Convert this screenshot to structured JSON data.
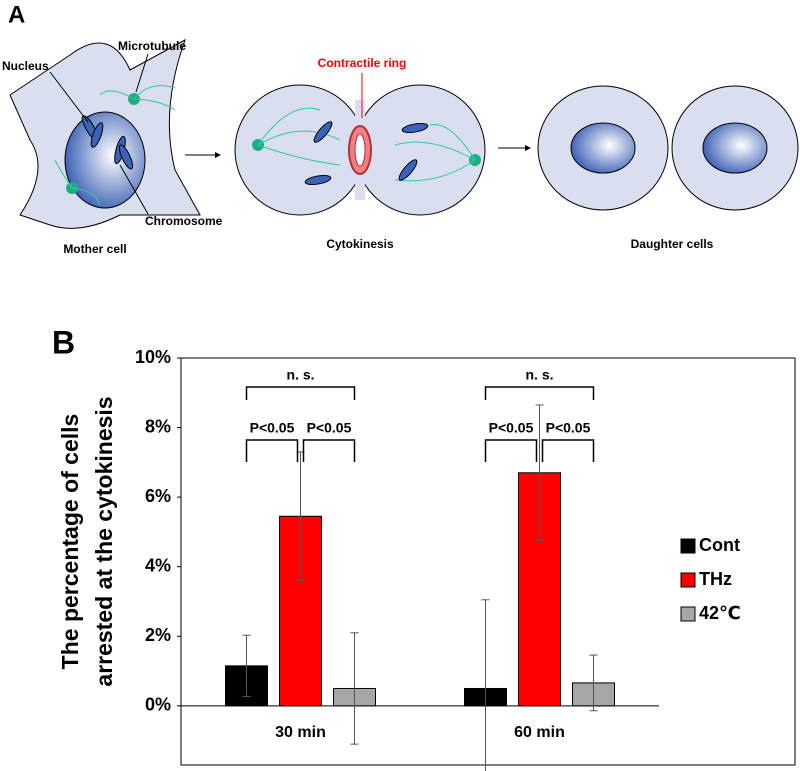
{
  "panel_a": {
    "label": "A",
    "labels": {
      "nucleus": "Nucleus",
      "microtubule": "Microtubule",
      "chromosome": "Chromosome",
      "mother_cell": "Mother cell",
      "contractile_ring": "Contractile ring",
      "cytokinesis": "Cytokinesis",
      "daughter_cells": "Daughter cells"
    }
  },
  "chart_data": {
    "type": "bar",
    "panel_label": "B",
    "y_label": [
      "The percentage of cells",
      "arrested at the cytokinesis"
    ],
    "categories": [
      "30 min",
      "60 min"
    ],
    "series": [
      {
        "name": "Cont",
        "color": "#000000",
        "values": [
          1.15,
          0.5
        ],
        "errors": [
          0.88,
          2.55
        ]
      },
      {
        "name": "THz",
        "color": "#ff0000",
        "values": [
          5.45,
          6.7
        ],
        "errors": [
          1.85,
          1.95
        ]
      },
      {
        "name": "42℃",
        "color": "#a6a6a6",
        "values": [
          0.5,
          0.66
        ],
        "errors": [
          1.6,
          0.8
        ]
      }
    ],
    "annotations": [
      [
        "n. s.",
        "P<0.05",
        "P<0.05"
      ],
      [
        "n. s.",
        "P<0.05",
        "P<0.05"
      ]
    ],
    "ylim": [
      -1.7,
      10
    ],
    "yticks": [
      {
        "value": 0,
        "label": "0%"
      },
      {
        "value": 2,
        "label": "2%"
      },
      {
        "value": 4,
        "label": "4%"
      },
      {
        "value": 6,
        "label": "6%"
      },
      {
        "value": 8,
        "label": "8%"
      },
      {
        "value": 10,
        "label": "10%"
      }
    ],
    "legend": "right"
  }
}
